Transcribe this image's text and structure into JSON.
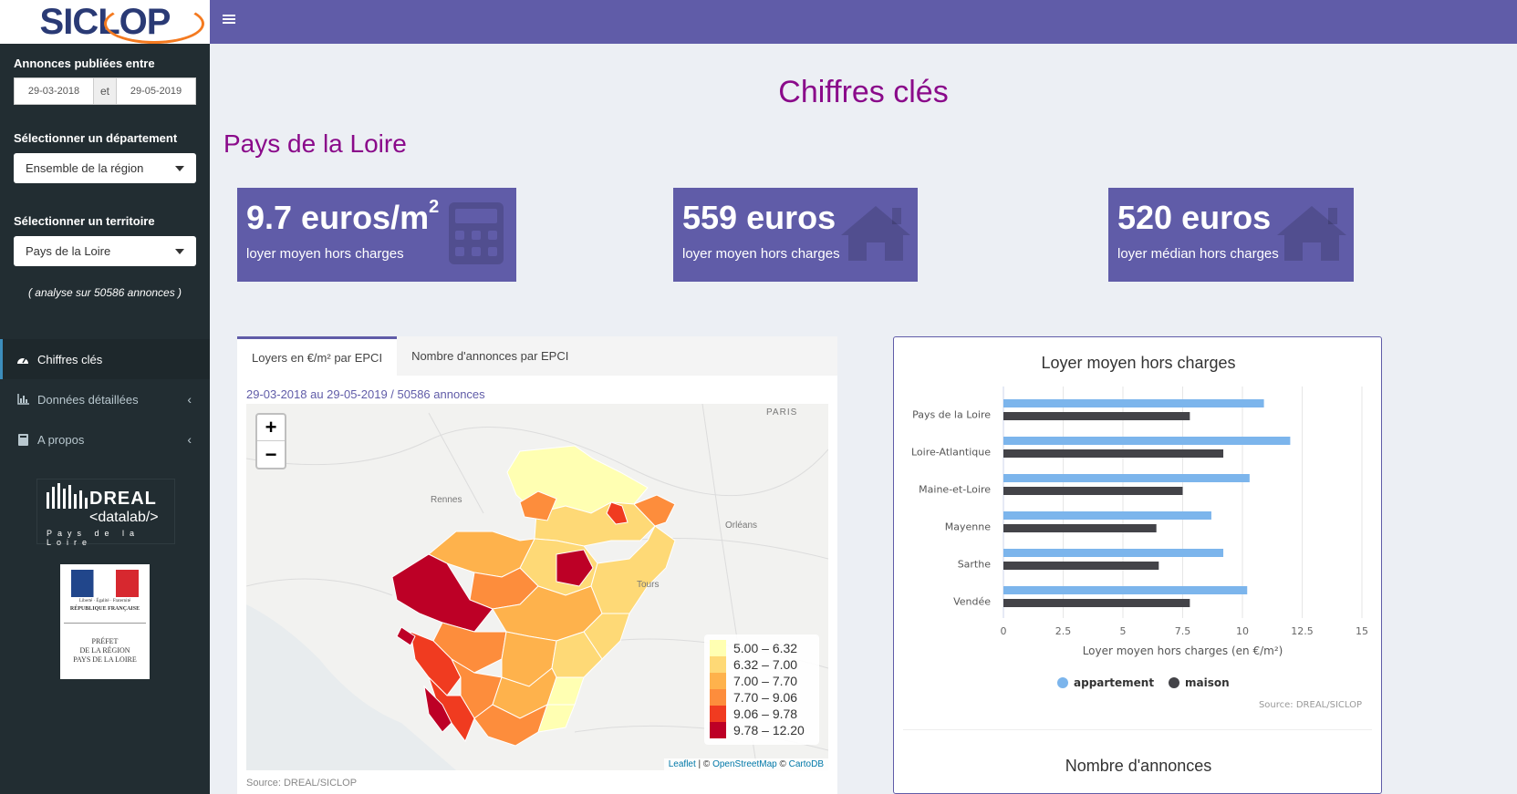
{
  "app": {
    "logo": "SICLOP"
  },
  "sidebar": {
    "date_label": "Annonces publiées entre",
    "date_start": "29-03-2018",
    "date_sep": "et",
    "date_end": "29-05-2019",
    "dept_label": "Sélectionner un département",
    "dept_value": "Ensemble de la région",
    "terr_label": "Sélectionner un territoire",
    "terr_value": "Pays de la Loire",
    "analyse": "( analyse sur 50586 annonces )",
    "menu": [
      {
        "label": "Chiffres clés",
        "icon": "dashboard-icon"
      },
      {
        "label": "Données détaillées",
        "icon": "bar-chart-icon"
      },
      {
        "label": "A propos",
        "icon": "book-icon"
      }
    ],
    "dreal": {
      "title": "DREAL",
      "subtitle": "<datalab/>",
      "region": "Pays de la Loire"
    },
    "prefet": {
      "motto": "Liberté · Égalité · Fraternité",
      "republic": "RÉPUBLIQUE FRANÇAISE",
      "line1": "PRÉFET",
      "line2": "DE LA RÉGION",
      "line3": "PAYS DE LA LOIRE"
    }
  },
  "main": {
    "title": "Chiffres clés",
    "region": "Pays de la Loire",
    "boxes": [
      {
        "value": "9.7 euros/m",
        "sup": "2",
        "desc": "loyer moyen hors charges",
        "icon": "calculator-icon"
      },
      {
        "value": "559 euros",
        "sup": "",
        "desc": "loyer moyen hors charges",
        "icon": "home-icon"
      },
      {
        "value": "520 euros",
        "sup": "",
        "desc": "loyer médian hors charges",
        "icon": "home-icon"
      }
    ]
  },
  "map": {
    "tabs": [
      "Loyers en €/m² par EPCI",
      "Nombre d'annonces par EPCI"
    ],
    "subtitle": "29-03-2018 au 29-05-2019 / 50586 annonces",
    "cities": [
      "PARIS",
      "Rennes",
      "Orléans",
      "Tours"
    ],
    "legend": [
      {
        "label": "5.00 – 6.32",
        "color": "#ffffb2"
      },
      {
        "label": "6.32 – 7.00",
        "color": "#fed976"
      },
      {
        "label": "7.00 – 7.70",
        "color": "#feb24c"
      },
      {
        "label": "7.70 – 9.06",
        "color": "#fd8d3c"
      },
      {
        "label": "9.06 – 9.78",
        "color": "#f03b20"
      },
      {
        "label": "9.78 – 12.20",
        "color": "#bd0026"
      }
    ],
    "attrib": {
      "leaflet": "Leaflet",
      "sep1": " | © ",
      "osm": "OpenStreetMap",
      "sep2": " © ",
      "carto": "CartoDB"
    },
    "source": "Source: DREAL/SICLOP",
    "zoom_in": "+",
    "zoom_out": "−"
  },
  "chart_data": {
    "type": "bar",
    "orientation": "horizontal",
    "title": "Loyer moyen hors charges",
    "categories": [
      "Pays de la Loire",
      "Loire-Atlantique",
      "Maine-et-Loire",
      "Mayenne",
      "Sarthe",
      "Vendée"
    ],
    "series": [
      {
        "name": "appartement",
        "color": "#7cb5ec",
        "values": [
          10.9,
          12.0,
          10.3,
          8.7,
          9.2,
          10.2
        ]
      },
      {
        "name": "maison",
        "color": "#434348",
        "values": [
          7.8,
          9.2,
          7.5,
          6.4,
          6.5,
          7.8
        ]
      }
    ],
    "xlabel": "Loyer moyen hors charges (en €/m²)",
    "xlim": [
      0,
      15
    ],
    "xticks": [
      "0",
      "2.5",
      "5",
      "7.5",
      "10",
      "12.5",
      "15"
    ],
    "grid": true,
    "legend_position": "bottom",
    "credit": "Source: DREAL/SICLOP"
  },
  "chart2": {
    "title": "Nombre d'annonces"
  }
}
